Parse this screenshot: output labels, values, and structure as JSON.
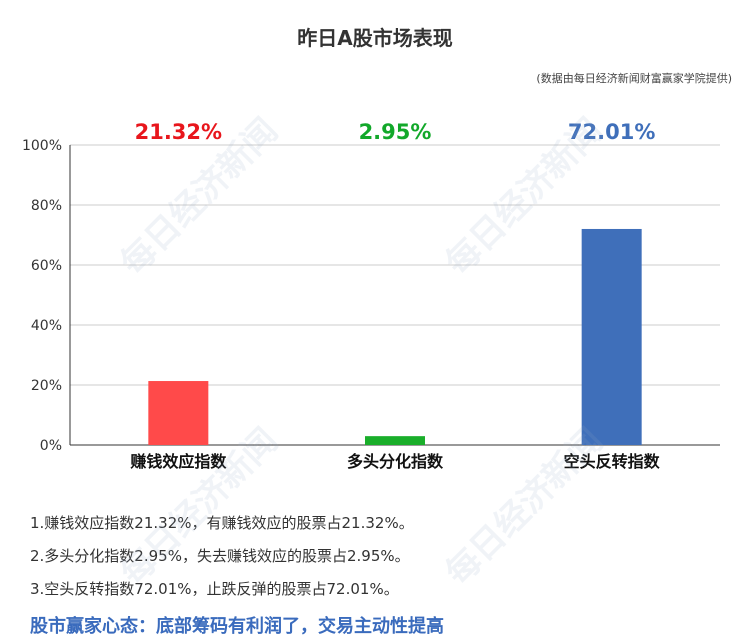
{
  "title": "昨日A股市场表现",
  "source": "(数据由每日经济新闻财富赢家学院提供)",
  "watermark": "每日经济新闻",
  "notes": [
    "1.赚钱效应指数21.32%，有赚钱效应的股票占21.32%。",
    "2.多头分化指数2.95%，失去赚钱效应的股票占2.95%。",
    "3.空头反转指数72.01%，止跌反弹的股票占72.01%。"
  ],
  "headline": "股市赢家心态：底部筹码有利润了，交易主动性提高",
  "chart_data": {
    "type": "bar",
    "categories": [
      "赚钱效应指数",
      "多头分化指数",
      "空头反转指数"
    ],
    "values": [
      21.32,
      2.95,
      72.01
    ],
    "value_labels": [
      "21.32%",
      "2.95%",
      "72.01%"
    ],
    "colors": [
      "#ff4a4a",
      "#1aae2a",
      "#3f6fba"
    ],
    "label_colors": [
      "#e8161c",
      "#12a82a",
      "#3f6fba"
    ],
    "ylim": [
      0,
      100
    ],
    "yticks": [
      0,
      20,
      40,
      60,
      80,
      100
    ],
    "ytick_labels": [
      "0%",
      "20%",
      "40%",
      "60%",
      "80%",
      "100%"
    ],
    "grid": true,
    "xlabel": "",
    "ylabel": ""
  }
}
